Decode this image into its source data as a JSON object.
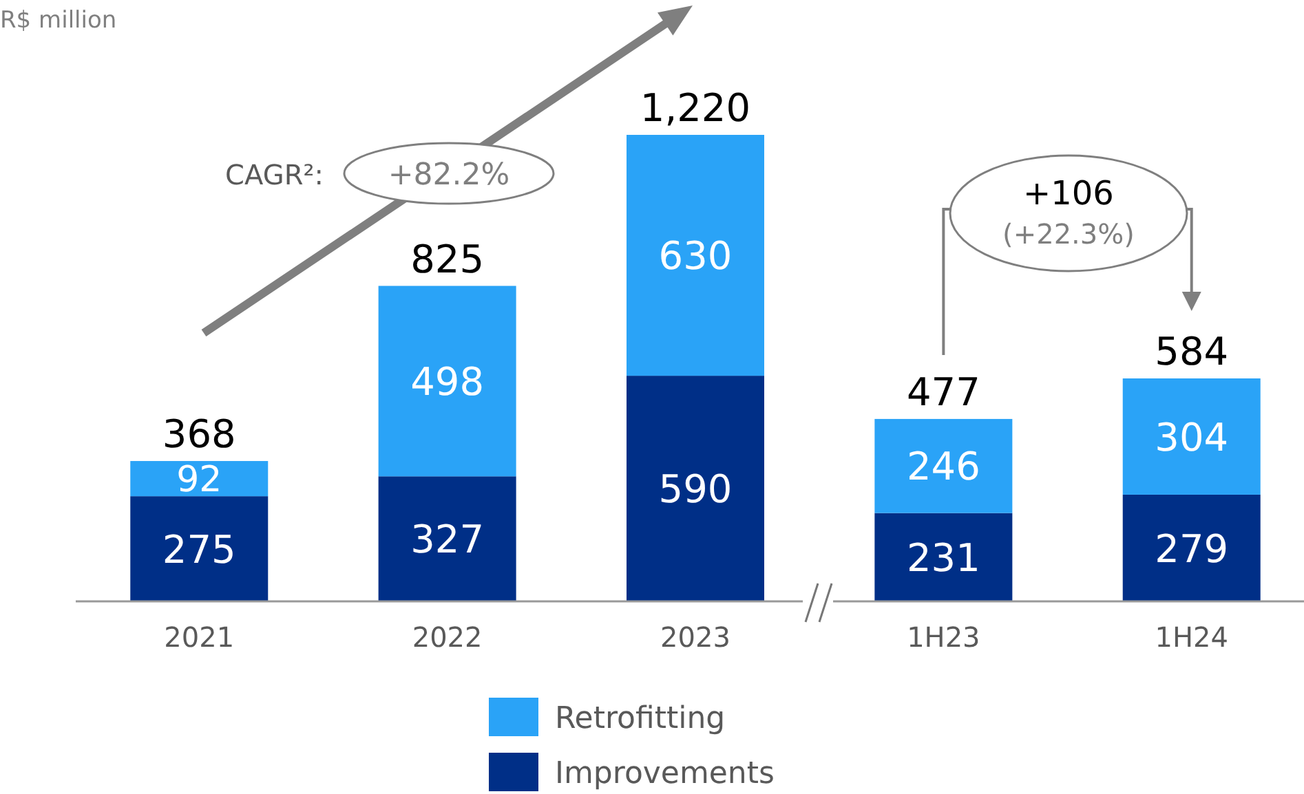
{
  "chart_data": {
    "type": "bar",
    "stacked": true,
    "ylabel": "R$ million",
    "categories": [
      "2021",
      "2022",
      "2023",
      "1H23",
      "1H24"
    ],
    "series": [
      {
        "name": "Improvements",
        "color": "#002f87",
        "values": [
          275,
          327,
          590,
          231,
          279
        ]
      },
      {
        "name": "Retrofitting",
        "color": "#2aa3f7",
        "values": [
          92,
          498,
          630,
          246,
          304
        ]
      }
    ],
    "data_labels": true,
    "totals": [
      "368",
      "825",
      "1,220",
      "477",
      "584"
    ],
    "legend": "bottom",
    "annotations": [
      "CAGR²:",
      "+82.2%",
      "+106",
      "(+22.3%)"
    ]
  }
}
